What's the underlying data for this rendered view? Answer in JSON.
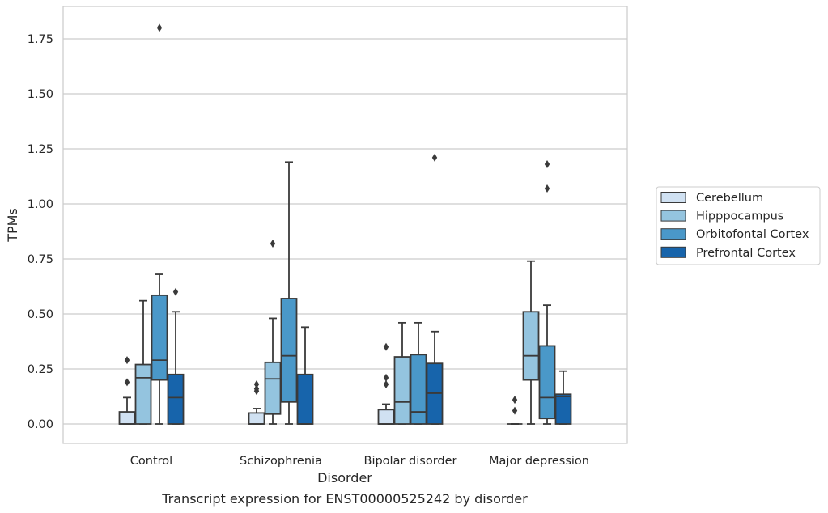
{
  "chart_data": {
    "type": "box",
    "title": "",
    "caption": "Transcript expression for ENST00000525242 by disorder",
    "xlabel": "Disorder",
    "ylabel": "TPMs",
    "ylim": [
      -0.09,
      1.89
    ],
    "yticks": [
      "0.00",
      "0.25",
      "0.50",
      "0.75",
      "1.00",
      "1.25",
      "1.50",
      "1.75"
    ],
    "grid": "horizontal",
    "legend_placement": "right",
    "categories": [
      "Control",
      "Schizophrenia",
      "Bipolar disorder",
      "Major depression"
    ],
    "series": [
      {
        "name": "Cerebellum",
        "color": "#d0e1f2",
        "boxes": [
          {
            "min": 0.0,
            "q1": 0.0,
            "median": 0.0,
            "q3": 0.055,
            "max": 0.12,
            "outliers": [
              0.19,
              0.29
            ]
          },
          {
            "min": 0.0,
            "q1": 0.0,
            "median": 0.0,
            "q3": 0.05,
            "max": 0.07,
            "outliers": [
              0.15,
              0.16,
              0.18
            ]
          },
          {
            "min": 0.0,
            "q1": 0.0,
            "median": 0.0,
            "q3": 0.065,
            "max": 0.09,
            "outliers": [
              0.18,
              0.21,
              0.35
            ]
          },
          {
            "min": 0.0,
            "q1": 0.0,
            "median": 0.0,
            "q3": 0.0,
            "max": 0.0,
            "outliers": [
              0.06,
              0.11
            ]
          }
        ]
      },
      {
        "name": "Hipppocampus",
        "color": "#94c4df",
        "boxes": [
          {
            "min": 0.0,
            "q1": 0.0,
            "median": 0.21,
            "q3": 0.27,
            "max": 0.56,
            "outliers": []
          },
          {
            "min": 0.0,
            "q1": 0.045,
            "median": 0.205,
            "q3": 0.28,
            "max": 0.48,
            "outliers": [
              0.82
            ]
          },
          {
            "min": 0.0,
            "q1": 0.0,
            "median": 0.1,
            "q3": 0.305,
            "max": 0.46,
            "outliers": []
          },
          {
            "min": 0.0,
            "q1": 0.2,
            "median": 0.31,
            "q3": 0.51,
            "max": 0.74,
            "outliers": []
          }
        ]
      },
      {
        "name": "Orbitofontal Cortex",
        "color": "#4a98c9",
        "boxes": [
          {
            "min": 0.0,
            "q1": 0.2,
            "median": 0.29,
            "q3": 0.585,
            "max": 0.68,
            "outliers": [
              1.8
            ]
          },
          {
            "min": 0.0,
            "q1": 0.1,
            "median": 0.31,
            "q3": 0.57,
            "max": 1.19,
            "outliers": []
          },
          {
            "min": 0.0,
            "q1": 0.0,
            "median": 0.055,
            "q3": 0.315,
            "max": 0.46,
            "outliers": []
          },
          {
            "min": 0.0,
            "q1": 0.025,
            "median": 0.12,
            "q3": 0.355,
            "max": 0.54,
            "outliers": [
              1.07,
              1.18
            ]
          }
        ]
      },
      {
        "name": "Prefrontal Cortex",
        "color": "#1764ab",
        "boxes": [
          {
            "min": 0.0,
            "q1": 0.0,
            "median": 0.12,
            "q3": 0.225,
            "max": 0.51,
            "outliers": [
              0.6
            ]
          },
          {
            "min": 0.0,
            "q1": 0.0,
            "median": 0.0,
            "q3": 0.225,
            "max": 0.44,
            "outliers": []
          },
          {
            "min": 0.0,
            "q1": 0.0,
            "median": 0.14,
            "q3": 0.275,
            "max": 0.42,
            "outliers": [
              1.21
            ]
          },
          {
            "min": 0.0,
            "q1": 0.0,
            "median": 0.125,
            "q3": 0.135,
            "max": 0.24,
            "outliers": []
          }
        ]
      }
    ]
  }
}
